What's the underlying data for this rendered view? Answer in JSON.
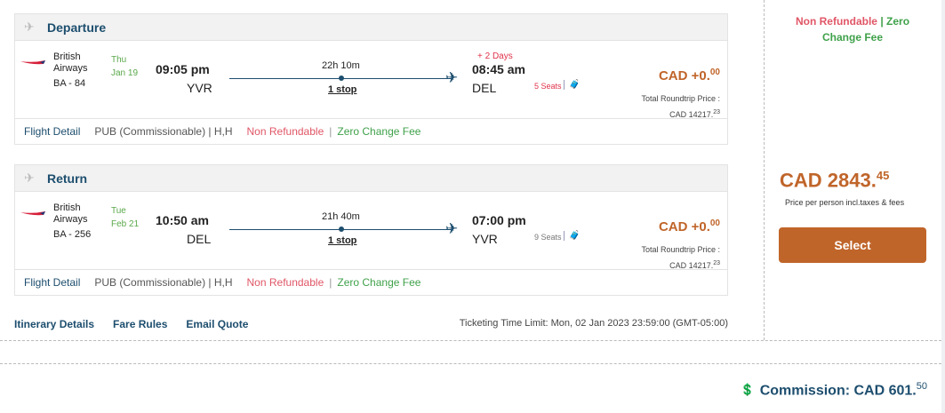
{
  "segments": [
    {
      "title": "Departure",
      "airline": "British Airways",
      "flight": "BA - 84",
      "day": "Thu",
      "date": "Jan 19",
      "dep_time": "09:05 pm",
      "dep_code": "YVR",
      "duration": "22h 10m",
      "stops": "1 stop",
      "plus_days": "+ 2 Days",
      "arr_time": "08:45 am",
      "arr_code": "DEL",
      "seats": "5 Seats",
      "price_main": "CAD +0.",
      "price_cents": "00",
      "total_label": "Total Roundtrip Price :",
      "total_main": "CAD 14217.",
      "total_cents": "23",
      "flight_detail": "Flight Detail",
      "fare_class": "PUB (Commissionable) | H,H",
      "non_refundable": "Non Refundable",
      "sep": "|",
      "zero_change": "Zero Change Fee"
    },
    {
      "title": "Return",
      "airline": "British Airways",
      "flight": "BA - 256",
      "day": "Tue",
      "date": "Feb 21",
      "dep_time": "10:50 am",
      "dep_code": "DEL",
      "duration": "21h 40m",
      "stops": "1 stop",
      "arr_time": "07:00 pm",
      "arr_code": "YVR",
      "seats": "9 Seats",
      "price_main": "CAD +0.",
      "price_cents": "00",
      "total_label": "Total Roundtrip Price :",
      "total_main": "CAD 14217.",
      "total_cents": "23",
      "flight_detail": "Flight Detail",
      "fare_class": "PUB (Commissionable) | H,H",
      "non_refundable": "Non Refundable",
      "sep": "|",
      "zero_change": "Zero Change Fee"
    }
  ],
  "links": {
    "itinerary": "Itinerary Details",
    "fare_rules": "Fare Rules",
    "email_quote": "Email Quote"
  },
  "ticketing_limit": "Ticketing Time Limit: Mon, 02 Jan 2023 23:59:00 (GMT-05:00)",
  "side": {
    "non_refundable": "Non Refundable",
    "sep": "|",
    "zero_change": "Zero Change Fee",
    "price_main": "CAD 2843.",
    "price_cents": "45",
    "price_note": "Price per person incl.taxes & fees",
    "select": "Select"
  },
  "commission": {
    "label": "Commission: CAD 601.",
    "cents": "50"
  },
  "colors": {
    "accent": "#c0652a",
    "primary": "#1d4e6e",
    "red": "#e05666",
    "green": "#3fa14a"
  }
}
